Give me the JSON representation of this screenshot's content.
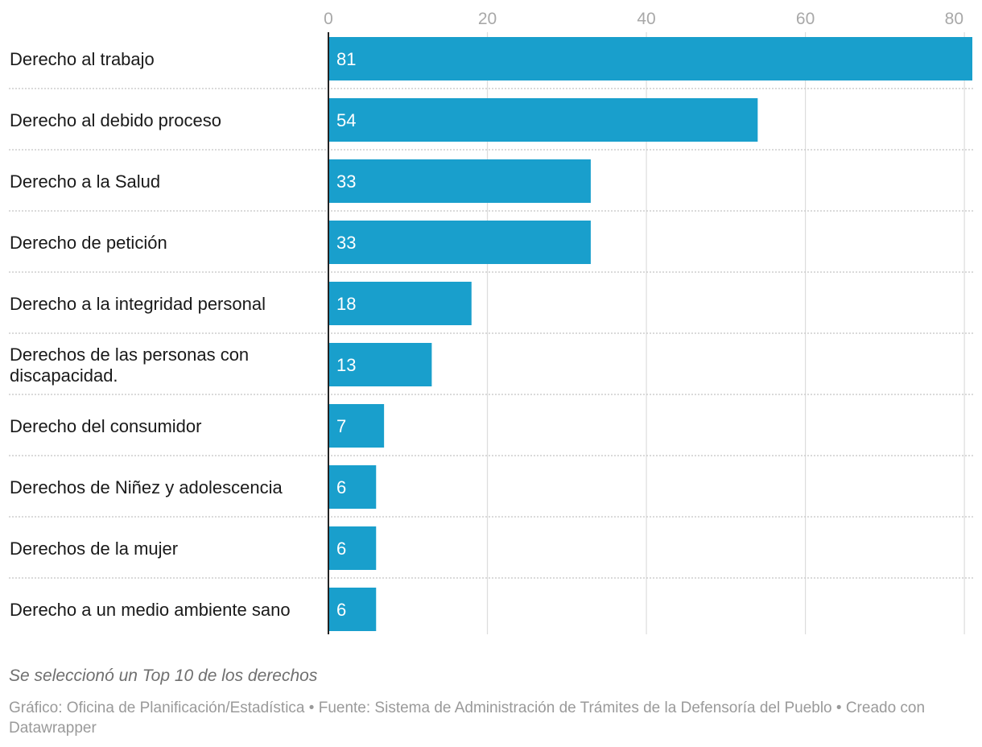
{
  "chart_data": {
    "type": "bar",
    "orientation": "horizontal",
    "categories": [
      "Derecho al trabajo",
      "Derecho al debido proceso",
      "Derecho a la Salud",
      "Derecho de petición",
      "Derecho a la integridad personal",
      "Derechos de las personas con discapacidad.",
      "Derecho del consumidor",
      "Derechos de Niñez y adolescencia",
      "Derechos de la mujer",
      "Derecho a un medio ambiente sano"
    ],
    "values": [
      81,
      54,
      33,
      33,
      18,
      13,
      7,
      6,
      6,
      6
    ],
    "xlim": [
      0,
      81
    ],
    "xticks": [
      0,
      20,
      40,
      60,
      80
    ],
    "xtick_labels": [
      "0",
      "20",
      "40",
      "60",
      "80"
    ],
    "grid": true,
    "data_labels": true,
    "bar_color": "#199fcc",
    "title": "",
    "xlabel": "",
    "ylabel": ""
  },
  "footer": {
    "note": "Se seleccionó un Top 10 de los derechos",
    "credits": "Gráfico: Oficina de Planificación/Estadística • Fuente: Sistema de Administración de Trámites de la Defensoría del Pueblo • Creado con Datawrapper"
  }
}
